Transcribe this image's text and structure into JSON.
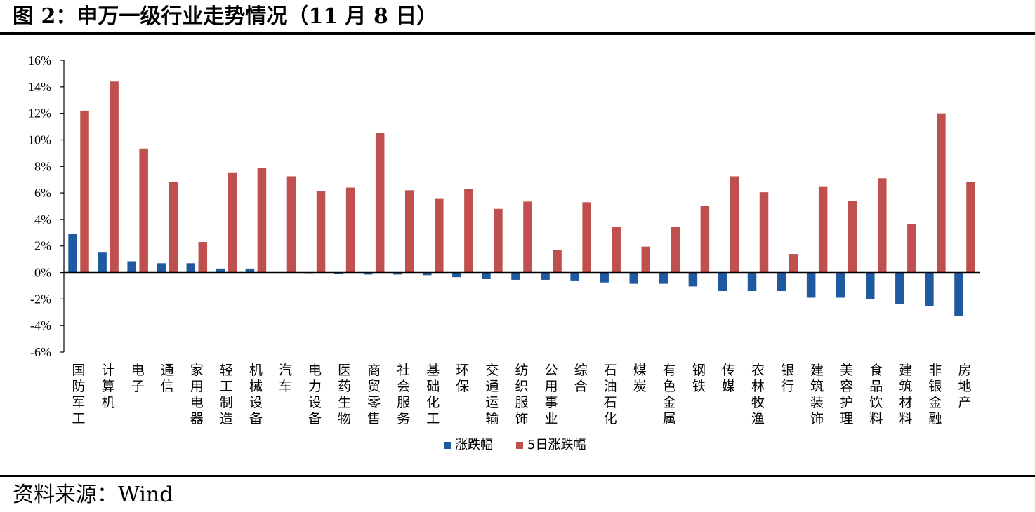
{
  "figure_title": "图 2：申万一级行业走势情况（11 月 8 日）",
  "source": "资料来源：Wind",
  "colors": {
    "series1": "#1f5aa0",
    "series2": "#c0504d"
  },
  "chart_data": {
    "type": "bar",
    "title": "",
    "xlabel": "",
    "ylabel": "",
    "ylim": [
      -6,
      16
    ],
    "yticks": [
      16,
      14,
      12,
      10,
      8,
      6,
      4,
      2,
      0,
      -2,
      -4,
      -6
    ],
    "ytick_labels": [
      "16%",
      "14%",
      "12%",
      "10%",
      "8%",
      "6%",
      "4%",
      "2%",
      "0%",
      "-2%",
      "-4%",
      "-6%"
    ],
    "legend_position": "bottom",
    "grid": false,
    "categories": [
      "国防军工",
      "计算机",
      "电子",
      "通信",
      "家用电器",
      "轻工制造",
      "机械设备",
      "汽车",
      "电力设备",
      "医药生物",
      "商贸零售",
      "社会服务",
      "基础化工",
      "环保",
      "交通运输",
      "纺织服饰",
      "公用事业",
      "综合",
      "石油石化",
      "煤炭",
      "有色金属",
      "钢铁",
      "传媒",
      "农林牧渔",
      "银行",
      "建筑装饰",
      "美容护理",
      "食品饮料",
      "建筑材料",
      "非银金融",
      "房地产"
    ],
    "series": [
      {
        "name": "涨跌幅",
        "values": [
          2.9,
          1.5,
          0.85,
          0.7,
          0.7,
          0.3,
          0.3,
          0.0,
          -0.05,
          -0.1,
          -0.15,
          -0.15,
          -0.2,
          -0.35,
          -0.5,
          -0.55,
          -0.55,
          -0.6,
          -0.75,
          -0.85,
          -0.85,
          -1.05,
          -1.4,
          -1.4,
          -1.4,
          -1.9,
          -1.9,
          -2.0,
          -2.4,
          -2.55,
          -3.3
        ]
      },
      {
        "name": "5日涨跌幅",
        "values": [
          12.2,
          14.4,
          9.35,
          6.8,
          2.3,
          7.55,
          7.9,
          7.25,
          6.15,
          6.4,
          10.5,
          6.2,
          5.55,
          6.3,
          4.8,
          5.35,
          1.7,
          5.3,
          3.45,
          1.95,
          3.45,
          5.0,
          7.25,
          6.05,
          1.4,
          6.5,
          5.4,
          7.1,
          3.65,
          12.0,
          6.8
        ]
      }
    ]
  }
}
